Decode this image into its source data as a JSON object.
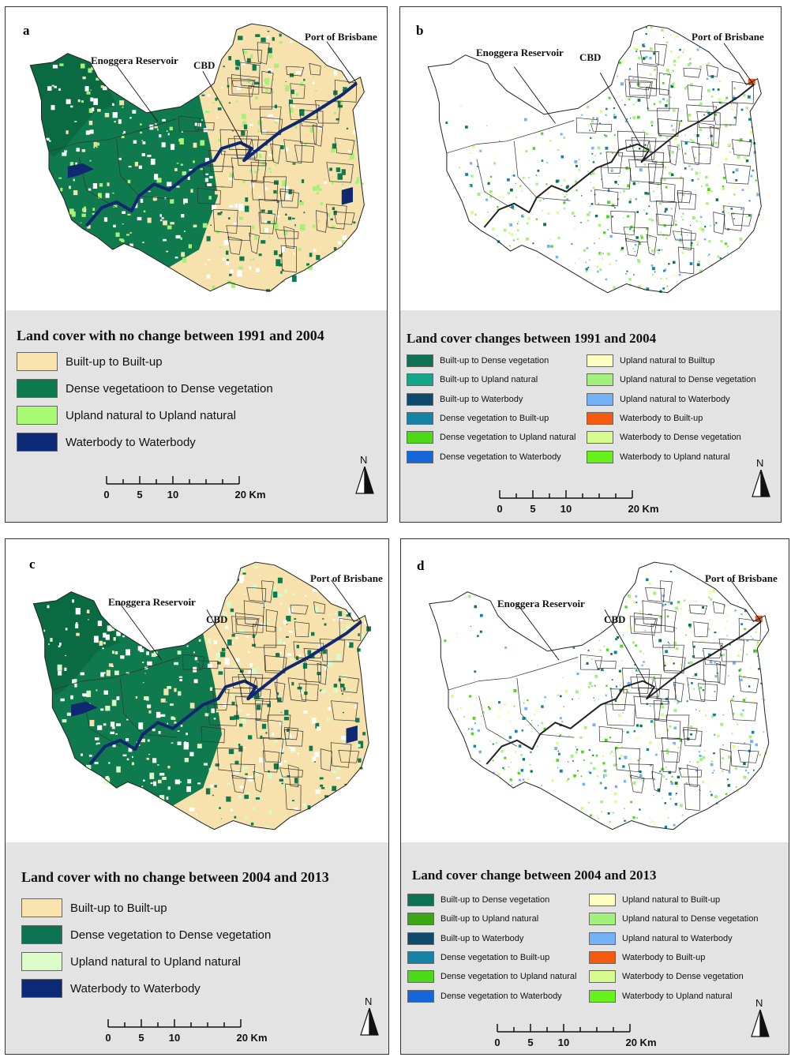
{
  "colors": {
    "builtup": "#f7e2ad",
    "dense": "#0f7a4e",
    "upland": "#a8f07a",
    "upland_pale": "#d8fbc8",
    "water": "#0f2870",
    "outline": "#222222"
  },
  "labels": {
    "enoggera": "Enoggera Reservoir",
    "cbd": "CBD",
    "port": "Port of Brisbane",
    "port_cut": "Port of Brisbane"
  },
  "scalebar": {
    "ticks": [
      "0",
      "5",
      "10",
      "20 Km"
    ]
  },
  "north_label": "N",
  "panels": {
    "a": {
      "letter": "a",
      "legend_title": "Land cover with no change between 1991 and 2004",
      "items": [
        {
          "label": "Built-up to Built-up",
          "color": "#fbe3ad"
        },
        {
          "label": "Dense vegetatioon to Dense vegetation",
          "color": "#0e7a4e"
        },
        {
          "label": "Upland natural to Upland natural",
          "color": "#a9fb73"
        },
        {
          "label": "Waterbody to Waterbody",
          "color": "#0d2a78"
        }
      ]
    },
    "b": {
      "letter": "b",
      "legend_title": "Land cover changes between 1991 and 2004",
      "items": [
        {
          "label": "Built-up to Dense vegetation",
          "color": "#0e7352"
        },
        {
          "label": "Built-up to Upland natural",
          "color": "#14a889"
        },
        {
          "label": "Built-up to Waterbody",
          "color": "#0e4a6e"
        },
        {
          "label": "Dense vegetation to Built-up",
          "color": "#1583a6"
        },
        {
          "label": "Dense vegetation to Upland natural",
          "color": "#4cd91a"
        },
        {
          "label": "Dense vegetation to Waterbody",
          "color": "#1466d9"
        },
        {
          "label": "Upland natural to Builtup",
          "color": "#fefec2"
        },
        {
          "label": "Upland natural to Dense vegetation",
          "color": "#a3f07f"
        },
        {
          "label": "Upland natural to Waterbody",
          "color": "#73b2f7"
        },
        {
          "label": "Waterbody to Built-up",
          "color": "#f55a11"
        },
        {
          "label": "Waterbody to Dense vegetation",
          "color": "#d8fb8f"
        },
        {
          "label": "Waterbody to Upland natural",
          "color": "#66f21a"
        }
      ]
    },
    "c": {
      "letter": "c",
      "legend_title": "Land cover with no change between 2004 and 2013",
      "items": [
        {
          "label": "Built-up to Built-up",
          "color": "#fbe3ad"
        },
        {
          "label": "Dense vegetation to Dense vegetation",
          "color": "#0e7352"
        },
        {
          "label": "Upland natural to Upland natural",
          "color": "#dbfbc8"
        },
        {
          "label": "Waterbody to Waterbody",
          "color": "#0d2a78"
        }
      ]
    },
    "d": {
      "letter": "d",
      "legend_title": "Land cover change between 2004 and 2013",
      "items": [
        {
          "label": "Built-up to Dense vegetation",
          "color": "#0e7352"
        },
        {
          "label": "Built-up to Upland natural",
          "color": "#3aa814"
        },
        {
          "label": "Built-up to Waterbody",
          "color": "#0e4a6e"
        },
        {
          "label": "Dense vegetation to Built-up",
          "color": "#1583a6"
        },
        {
          "label": "Dense vegetation to Upland natural",
          "color": "#4cd91a"
        },
        {
          "label": "Dense vegetation to Waterbody",
          "color": "#1466d9"
        },
        {
          "label": "Upland natural to Built-up",
          "color": "#fefec2"
        },
        {
          "label": "Upland natural to Dense vegetation",
          "color": "#a3f07f"
        },
        {
          "label": "Upland natural to Waterbody",
          "color": "#73b2f7"
        },
        {
          "label": "Waterbody to Built-up",
          "color": "#f55a11"
        },
        {
          "label": "Waterbody to Dense vegetation",
          "color": "#d8fb8f"
        },
        {
          "label": "Waterbody to Upland natural",
          "color": "#66f21a"
        }
      ]
    }
  }
}
